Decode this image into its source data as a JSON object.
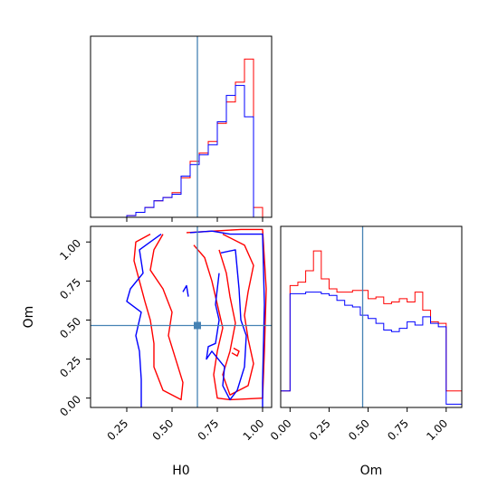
{
  "chart_data": {
    "type": "corner",
    "parameters": [
      "H0",
      "Om"
    ],
    "truth": {
      "H0": 0.64,
      "Om": 0.465
    },
    "colors": {
      "red": "#ff0000",
      "blue": "#0000ff",
      "truth": "#4682b4"
    },
    "panels": [
      {
        "id": "hist-H0",
        "type": "histogram",
        "xlim": [
          0.05,
          1.05
        ],
        "ylim": [
          0,
          1
        ],
        "bins": [
          0.05,
          0.1,
          0.15,
          0.2,
          0.25,
          0.3,
          0.35,
          0.4,
          0.45,
          0.5,
          0.55,
          0.6,
          0.65,
          0.7,
          0.75,
          0.8,
          0.85,
          0.9,
          0.95,
          1.0
        ],
        "series": [
          {
            "color": "red",
            "counts": [
              0,
              0,
              0,
              0,
              0.01,
              0.03,
              0.06,
              0.1,
              0.12,
              0.15,
              0.24,
              0.34,
              0.39,
              0.46,
              0.57,
              0.7,
              0.82,
              0.96,
              0.06
            ]
          },
          {
            "color": "blue",
            "counts": [
              0,
              0,
              0,
              0,
              0.01,
              0.03,
              0.06,
              0.1,
              0.12,
              0.14,
              0.25,
              0.32,
              0.38,
              0.44,
              0.58,
              0.74,
              0.8,
              0.61,
              0.0
            ]
          }
        ]
      },
      {
        "id": "hist-Om",
        "type": "histogram",
        "xlim": [
          -0.06,
          1.1
        ],
        "ylim": [
          0,
          1
        ],
        "xticks": [
          "0.00",
          "0.25",
          "0.50",
          "0.75",
          "1.00"
        ],
        "xtick_values": [
          0,
          0.25,
          0.5,
          0.75,
          1.0
        ],
        "xlabel": "Om",
        "bins": [
          0,
          0.05,
          0.1,
          0.15,
          0.2,
          0.25,
          0.3,
          0.35,
          0.4,
          0.45,
          0.5,
          0.55,
          0.6,
          0.65,
          0.7,
          0.75,
          0.8,
          0.85,
          0.9,
          0.95,
          1.0
        ],
        "series": [
          {
            "color": "red",
            "counts": [
              0.74,
              0.76,
              0.83,
              0.95,
              0.78,
              0.72,
              0.7,
              0.7,
              0.71,
              0.71,
              0.66,
              0.67,
              0.63,
              0.64,
              0.66,
              0.64,
              0.7,
              0.59,
              0.52,
              0.51
            ]
          },
          {
            "color": "blue",
            "counts": [
              0.69,
              0.69,
              0.7,
              0.7,
              0.69,
              0.68,
              0.65,
              0.62,
              0.61,
              0.56,
              0.54,
              0.51,
              0.47,
              0.46,
              0.48,
              0.52,
              0.5,
              0.55,
              0.51,
              0.49
            ]
          }
        ],
        "outside_left": [
          0.1,
          0.1
        ],
        "outside_right": [
          0.1,
          0.02
        ]
      },
      {
        "id": "contour-H0-Om",
        "type": "contour",
        "xlim": [
          0.05,
          1.05
        ],
        "ylim": [
          -0.06,
          1.1
        ],
        "xticks": [
          "0.25",
          "0.50",
          "0.75",
          "1.00"
        ],
        "xtick_values": [
          0.25,
          0.5,
          0.75,
          1.0
        ],
        "yticks": [
          "0.00",
          "0.25",
          "0.50",
          "0.75",
          "1.00"
        ],
        "ytick_values": [
          0,
          0.25,
          0.5,
          0.75,
          1.0
        ],
        "xlabel": "H0",
        "ylabel": "Om",
        "contours": [
          {
            "color": "red",
            "points": [
              [
                0.38,
                1.05
              ],
              [
                0.3,
                1.0
              ],
              [
                0.29,
                0.88
              ],
              [
                0.32,
                0.75
              ],
              [
                0.35,
                0.62
              ],
              [
                0.38,
                0.5
              ],
              [
                0.4,
                0.35
              ],
              [
                0.4,
                0.2
              ],
              [
                0.45,
                0.05
              ],
              [
                0.55,
                -0.01
              ],
              [
                0.56,
                0.1
              ],
              [
                0.52,
                0.25
              ],
              [
                0.48,
                0.4
              ],
              [
                0.5,
                0.55
              ],
              [
                0.45,
                0.7
              ],
              [
                0.38,
                0.82
              ],
              [
                0.4,
                0.95
              ],
              [
                0.45,
                1.05
              ]
            ]
          },
          {
            "color": "red",
            "points": [
              [
                0.58,
                1.06
              ],
              [
                0.73,
                1.07
              ],
              [
                0.88,
                1.08
              ],
              [
                1.0,
                1.08
              ],
              [
                1.02,
                0.7
              ],
              [
                1.01,
                0.3
              ],
              [
                1.0,
                0.0
              ],
              [
                0.82,
                -0.01
              ],
              [
                0.75,
                0.0
              ],
              [
                0.73,
                0.15
              ],
              [
                0.75,
                0.3
              ],
              [
                0.78,
                0.45
              ],
              [
                0.75,
                0.6
              ],
              [
                0.72,
                0.75
              ],
              [
                0.68,
                0.9
              ],
              [
                0.62,
                0.98
              ]
            ]
          },
          {
            "color": "red",
            "points": [
              [
                0.78,
                1.05
              ],
              [
                0.9,
                0.98
              ],
              [
                0.95,
                0.85
              ],
              [
                0.92,
                0.68
              ],
              [
                0.9,
                0.53
              ],
              [
                0.92,
                0.38
              ],
              [
                0.95,
                0.22
              ],
              [
                0.92,
                0.08
              ],
              [
                0.82,
                0.02
              ],
              [
                0.78,
                0.15
              ],
              [
                0.82,
                0.3
              ],
              [
                0.85,
                0.48
              ],
              [
                0.82,
                0.65
              ],
              [
                0.8,
                0.8
              ],
              [
                0.76,
                0.95
              ]
            ]
          },
          {
            "color": "red",
            "points": [
              [
                0.84,
                0.32
              ],
              [
                0.87,
                0.3
              ],
              [
                0.86,
                0.27
              ],
              [
                0.83,
                0.29
              ]
            ]
          },
          {
            "color": "blue",
            "points": [
              [
                0.44,
                1.05
              ],
              [
                0.38,
                1.0
              ],
              [
                0.32,
                0.95
              ],
              [
                0.34,
                0.8
              ],
              [
                0.27,
                0.7
              ],
              [
                0.25,
                0.62
              ],
              [
                0.33,
                0.55
              ],
              [
                0.3,
                0.4
              ],
              [
                0.32,
                0.3
              ],
              [
                0.33,
                0.12
              ],
              [
                0.33,
                -0.06
              ]
            ]
          },
          {
            "color": "blue",
            "points": [
              [
                0.6,
                1.06
              ],
              [
                0.72,
                1.07
              ],
              [
                0.82,
                1.05
              ],
              [
                1.0,
                1.05
              ],
              [
                1.01,
                0.6
              ],
              [
                1.0,
                0.1
              ],
              [
                1.0,
                -0.06
              ]
            ]
          },
          {
            "color": "blue",
            "points": [
              [
                0.77,
                0.93
              ],
              [
                0.85,
                0.95
              ],
              [
                0.87,
                0.7
              ],
              [
                0.88,
                0.5
              ],
              [
                0.91,
                0.4
              ],
              [
                0.9,
                0.2
              ],
              [
                0.86,
                0.05
              ],
              [
                0.82,
                -0.01
              ],
              [
                0.78,
                0.08
              ],
              [
                0.79,
                0.2
              ],
              [
                0.72,
                0.3
              ],
              [
                0.69,
                0.25
              ],
              [
                0.7,
                0.33
              ],
              [
                0.74,
                0.35
              ],
              [
                0.76,
                0.5
              ],
              [
                0.74,
                0.6
              ],
              [
                0.76,
                0.8
              ]
            ]
          },
          {
            "color": "blue",
            "points": [
              [
                0.56,
                0.68
              ],
              [
                0.58,
                0.72
              ],
              [
                0.59,
                0.65
              ]
            ]
          }
        ]
      }
    ]
  }
}
